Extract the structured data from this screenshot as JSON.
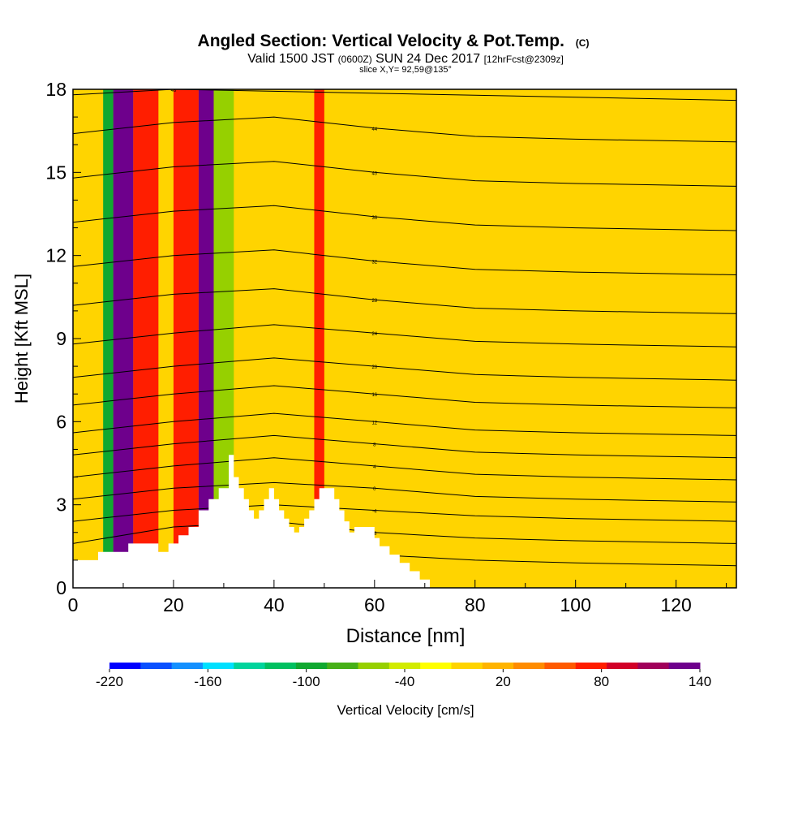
{
  "title": {
    "main": "Angled Section: Vertical Velocity & Pot.Temp.",
    "main_unit": "(C)",
    "valid_prefix": "Valid 1500 JST",
    "valid_zulu": "(0600Z)",
    "valid_date": "SUN 24 Dec 2017",
    "forecast": "[12hrFcst@2309z]",
    "slice": "slice X,Y= 92,59@135°"
  },
  "chart_data": {
    "type": "heatmap",
    "xlabel": "Distance [nm]",
    "ylabel": "Height [Kft MSL]",
    "xlim": [
      0,
      132
    ],
    "ylim": [
      0,
      18
    ],
    "x_ticks": [
      0,
      20,
      40,
      60,
      80,
      100,
      120
    ],
    "y_ticks": [
      0,
      3,
      6,
      9,
      12,
      15,
      18
    ],
    "colorbar": {
      "label": "Vertical Velocity [cm/s]",
      "min": -220,
      "max": 140,
      "step": 20,
      "tick_values": [
        -220,
        -160,
        -100,
        -40,
        20,
        80,
        140
      ],
      "colors": [
        "#0000ff",
        "#0a50ff",
        "#1490ff",
        "#00e0ff",
        "#00d49c",
        "#00c060",
        "#10a830",
        "#46b018",
        "#96d000",
        "#d2eb00",
        "#ffff00",
        "#ffd400",
        "#ffb400",
        "#ff8c00",
        "#ff5a00",
        "#ff1e00",
        "#d20028",
        "#a0005a",
        "#6e008c"
      ]
    },
    "vertical_velocity_bands": [
      {
        "x_from": 8,
        "x_to": 12,
        "value": 140
      },
      {
        "x_from": 12,
        "x_to": 17,
        "value": 80
      },
      {
        "x_from": 20,
        "x_to": 25,
        "value": 80
      },
      {
        "x_from": 25,
        "x_to": 28,
        "value": 140
      },
      {
        "x_from": 6,
        "x_to": 8,
        "value": -100
      },
      {
        "x_from": 28,
        "x_to": 32,
        "value": -60
      },
      {
        "x_from": 48,
        "x_to": 50,
        "value": 80
      }
    ],
    "terrain": [
      [
        0,
        1
      ],
      [
        5,
        1
      ],
      [
        5,
        1.3
      ],
      [
        11,
        1.3
      ],
      [
        11,
        1.6
      ],
      [
        17,
        1.6
      ],
      [
        17,
        1.3
      ],
      [
        19,
        1.3
      ],
      [
        19,
        1.6
      ],
      [
        21,
        1.6
      ],
      [
        21,
        1.9
      ],
      [
        23,
        1.9
      ],
      [
        23,
        2.2
      ],
      [
        25,
        2.2
      ],
      [
        25,
        2.8
      ],
      [
        27,
        2.8
      ],
      [
        27,
        3.2
      ],
      [
        29,
        3.2
      ],
      [
        29,
        3.6
      ],
      [
        31,
        3.6
      ],
      [
        31,
        4.8
      ],
      [
        32,
        4.8
      ],
      [
        32,
        4
      ],
      [
        33,
        4
      ],
      [
        33,
        3.6
      ],
      [
        34,
        3.6
      ],
      [
        34,
        3.2
      ],
      [
        35,
        3.2
      ],
      [
        35,
        2.8
      ],
      [
        36,
        2.8
      ],
      [
        36,
        2.5
      ],
      [
        37,
        2.5
      ],
      [
        37,
        2.8
      ],
      [
        38,
        2.8
      ],
      [
        38,
        3.2
      ],
      [
        39,
        3.2
      ],
      [
        39,
        3.6
      ],
      [
        40,
        3.6
      ],
      [
        40,
        3.2
      ],
      [
        41,
        3.2
      ],
      [
        41,
        2.8
      ],
      [
        42,
        2.8
      ],
      [
        42,
        2.5
      ],
      [
        43,
        2.5
      ],
      [
        43,
        2.2
      ],
      [
        44,
        2.2
      ],
      [
        44,
        2
      ],
      [
        45,
        2
      ],
      [
        45,
        2.2
      ],
      [
        46,
        2.2
      ],
      [
        46,
        2.5
      ],
      [
        47,
        2.5
      ],
      [
        47,
        2.8
      ],
      [
        48,
        2.8
      ],
      [
        48,
        3.2
      ],
      [
        49,
        3.2
      ],
      [
        49,
        3.6
      ],
      [
        52,
        3.6
      ],
      [
        52,
        3.2
      ],
      [
        53,
        3.2
      ],
      [
        53,
        2.8
      ],
      [
        54,
        2.8
      ],
      [
        54,
        2.4
      ],
      [
        55,
        2.4
      ],
      [
        55,
        2
      ],
      [
        56,
        2
      ],
      [
        56,
        2.2
      ],
      [
        60,
        2.2
      ],
      [
        60,
        1.8
      ],
      [
        61,
        1.8
      ],
      [
        61,
        1.5
      ],
      [
        63,
        1.5
      ],
      [
        63,
        1.2
      ],
      [
        65,
        1.2
      ],
      [
        65,
        0.9
      ],
      [
        67,
        0.9
      ],
      [
        67,
        0.6
      ],
      [
        69,
        0.6
      ],
      [
        69,
        0.3
      ],
      [
        71,
        0.3
      ],
      [
        71,
        0
      ],
      [
        132,
        0
      ]
    ],
    "isentropes": [
      {
        "label": "-12",
        "points": [
          [
            0,
            0.8
          ],
          [
            15,
            1
          ],
          [
            30,
            1.5
          ],
          [
            60,
            1.2
          ],
          [
            80,
            1
          ],
          [
            100,
            0.9
          ],
          [
            132,
            0.8
          ]
        ]
      },
      {
        "label": "-8",
        "points": [
          [
            0,
            1.6
          ],
          [
            20,
            2.2
          ],
          [
            40,
            2.4
          ],
          [
            60,
            2
          ],
          [
            80,
            1.8
          ],
          [
            100,
            1.7
          ],
          [
            132,
            1.6
          ]
        ]
      },
      {
        "label": "-4",
        "points": [
          [
            0,
            2.4
          ],
          [
            20,
            2.8
          ],
          [
            40,
            3
          ],
          [
            60,
            2.8
          ],
          [
            80,
            2.6
          ],
          [
            100,
            2.5
          ],
          [
            132,
            2.4
          ]
        ]
      },
      {
        "label": "0",
        "points": [
          [
            0,
            3.2
          ],
          [
            20,
            3.6
          ],
          [
            40,
            3.8
          ],
          [
            60,
            3.6
          ],
          [
            80,
            3.3
          ],
          [
            100,
            3.2
          ],
          [
            132,
            3.1
          ]
        ]
      },
      {
        "label": "4",
        "points": [
          [
            0,
            4
          ],
          [
            20,
            4.4
          ],
          [
            40,
            4.7
          ],
          [
            60,
            4.4
          ],
          [
            80,
            4.1
          ],
          [
            100,
            4
          ],
          [
            132,
            3.9
          ]
        ]
      },
      {
        "label": "8",
        "points": [
          [
            0,
            4.8
          ],
          [
            20,
            5.2
          ],
          [
            40,
            5.5
          ],
          [
            60,
            5.2
          ],
          [
            80,
            4.9
          ],
          [
            100,
            4.8
          ],
          [
            132,
            4.7
          ]
        ]
      },
      {
        "label": "12",
        "points": [
          [
            0,
            5.6
          ],
          [
            20,
            6
          ],
          [
            40,
            6.3
          ],
          [
            60,
            6
          ],
          [
            80,
            5.7
          ],
          [
            100,
            5.6
          ],
          [
            132,
            5.5
          ]
        ]
      },
      {
        "label": "16",
        "points": [
          [
            0,
            6.6
          ],
          [
            20,
            7
          ],
          [
            40,
            7.3
          ],
          [
            60,
            7
          ],
          [
            80,
            6.7
          ],
          [
            100,
            6.6
          ],
          [
            132,
            6.5
          ]
        ]
      },
      {
        "label": "20",
        "points": [
          [
            0,
            7.6
          ],
          [
            20,
            8
          ],
          [
            40,
            8.3
          ],
          [
            60,
            8
          ],
          [
            80,
            7.7
          ],
          [
            100,
            7.6
          ],
          [
            132,
            7.5
          ]
        ]
      },
      {
        "label": "24",
        "points": [
          [
            0,
            8.8
          ],
          [
            20,
            9.2
          ],
          [
            40,
            9.5
          ],
          [
            60,
            9.2
          ],
          [
            80,
            8.9
          ],
          [
            100,
            8.8
          ],
          [
            132,
            8.7
          ]
        ]
      },
      {
        "label": "28",
        "points": [
          [
            0,
            10.2
          ],
          [
            20,
            10.6
          ],
          [
            40,
            10.8
          ],
          [
            60,
            10.4
          ],
          [
            80,
            10.1
          ],
          [
            100,
            10
          ],
          [
            132,
            9.9
          ]
        ]
      },
      {
        "label": "32",
        "points": [
          [
            0,
            11.6
          ],
          [
            20,
            12
          ],
          [
            40,
            12.2
          ],
          [
            60,
            11.8
          ],
          [
            80,
            11.5
          ],
          [
            100,
            11.4
          ],
          [
            132,
            11.3
          ]
        ]
      },
      {
        "label": "36",
        "points": [
          [
            0,
            13.2
          ],
          [
            20,
            13.6
          ],
          [
            40,
            13.8
          ],
          [
            60,
            13.4
          ],
          [
            80,
            13.1
          ],
          [
            100,
            13
          ],
          [
            132,
            12.9
          ]
        ]
      },
      {
        "label": "40",
        "points": [
          [
            0,
            14.8
          ],
          [
            20,
            15.2
          ],
          [
            40,
            15.4
          ],
          [
            60,
            15
          ],
          [
            80,
            14.7
          ],
          [
            100,
            14.6
          ],
          [
            132,
            14.5
          ]
        ]
      },
      {
        "label": "44",
        "points": [
          [
            0,
            16.4
          ],
          [
            20,
            16.8
          ],
          [
            40,
            17
          ],
          [
            60,
            16.6
          ],
          [
            80,
            16.3
          ],
          [
            100,
            16.2
          ],
          [
            132,
            16.1
          ]
        ]
      },
      {
        "label": "48",
        "points": [
          [
            0,
            17.8
          ],
          [
            20,
            18
          ],
          [
            132,
            17.6
          ]
        ]
      }
    ]
  }
}
